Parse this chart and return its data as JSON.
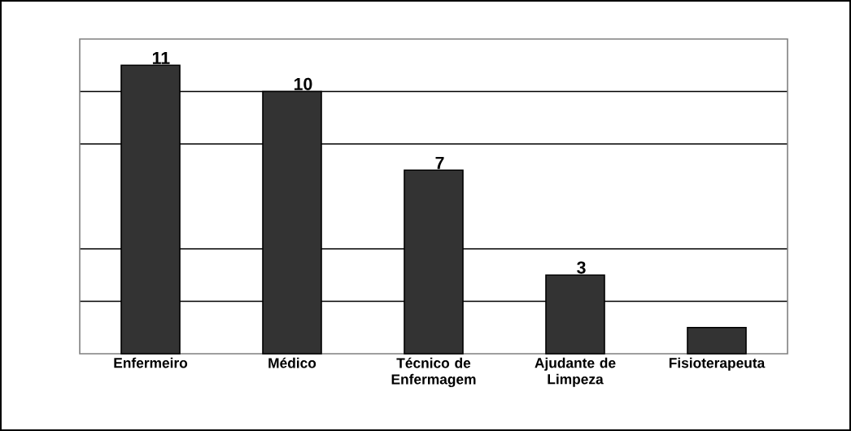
{
  "chart_data": {
    "type": "bar",
    "categories": [
      "Enfermeiro",
      "Médico",
      "Técnico de Enfermagem",
      "Ajudante de Limpeza",
      "Fisioterapeuta"
    ],
    "values": [
      11,
      10,
      7,
      3,
      1
    ],
    "value_labels": [
      "11",
      "10",
      "7",
      "3",
      null
    ],
    "color": "#333333",
    "ylim": [
      0,
      12
    ],
    "yticks": [
      {
        "value": 2,
        "label": null
      },
      {
        "value": 4,
        "label": null
      },
      {
        "value": 8,
        "label": null
      },
      {
        "value": 10,
        "label": null
      }
    ],
    "grid": "y",
    "tick_labels": "x"
  }
}
